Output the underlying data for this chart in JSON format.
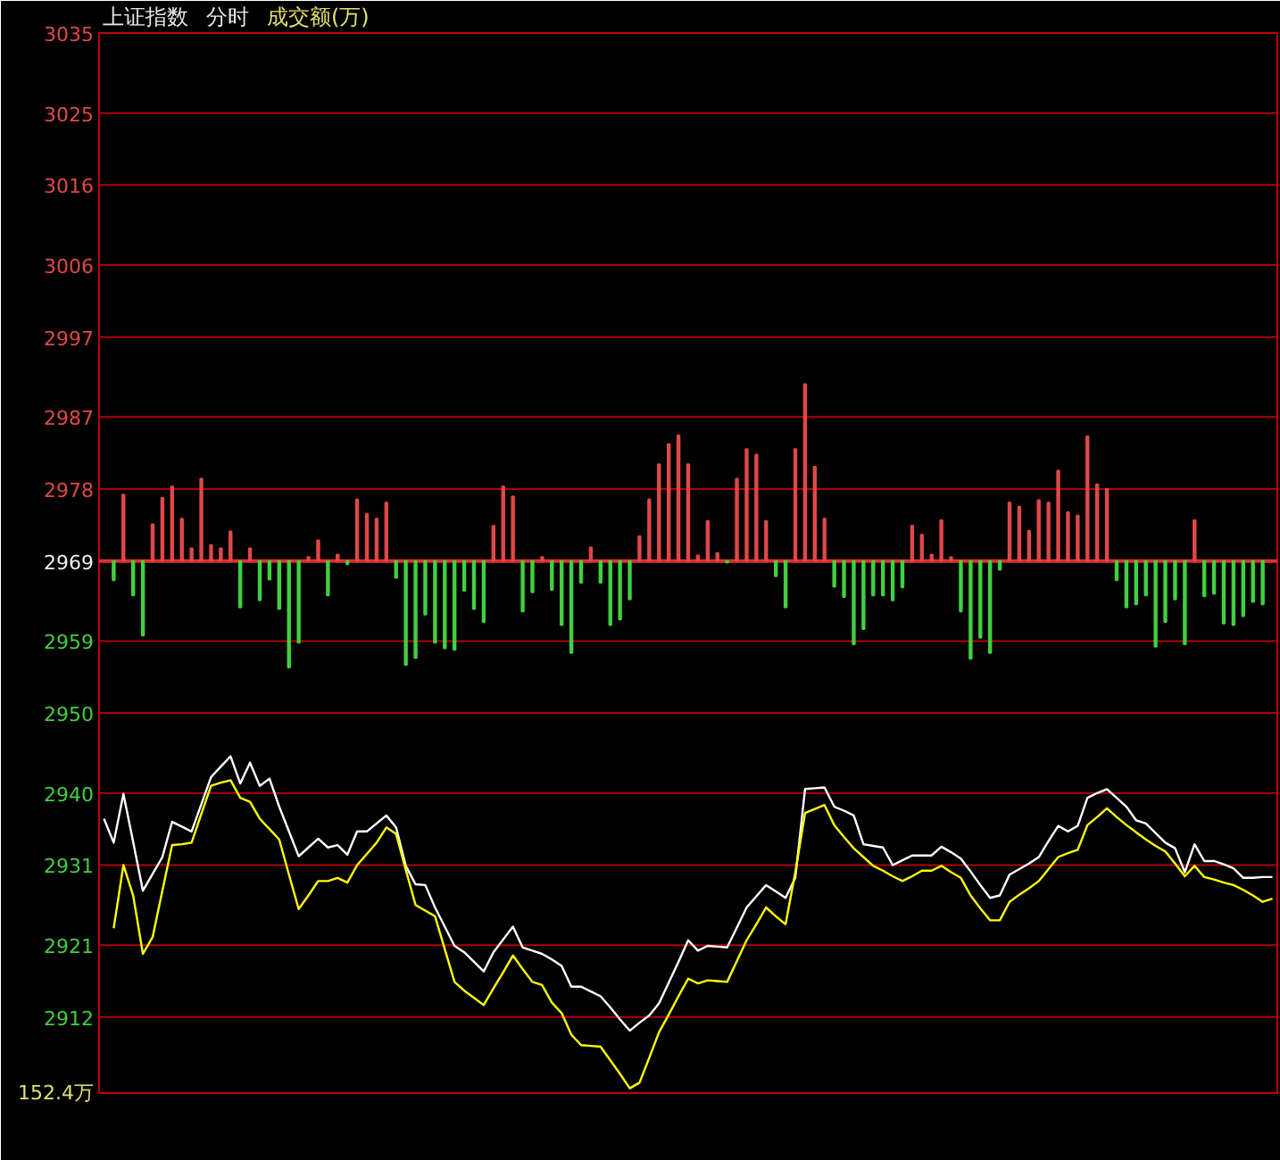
{
  "chart_data": {
    "type": "line",
    "title": "上证指数",
    "subtitle": "分时",
    "annotations": [
      "成交额(万)",
      "152.4万"
    ],
    "categories": [
      null,
      null,
      null,
      null,
      null,
      null,
      null,
      null,
      null,
      null,
      null,
      null,
      null,
      null,
      null,
      null,
      null,
      null,
      null,
      null,
      null,
      null,
      null,
      null,
      null,
      null,
      null,
      null,
      null,
      null,
      null,
      null,
      null,
      null,
      null,
      null,
      null,
      null,
      null,
      null,
      null,
      null,
      null,
      null,
      null,
      null,
      null,
      null,
      null,
      null,
      null,
      null,
      null,
      null,
      null,
      null,
      null,
      null,
      null,
      null,
      null,
      null,
      null,
      null,
      null,
      null,
      null,
      null,
      null,
      null,
      null,
      null,
      null,
      null,
      null,
      null,
      null,
      null,
      null,
      null,
      null,
      null,
      null,
      null,
      null,
      null,
      null,
      null,
      null,
      null,
      null,
      null,
      null,
      null,
      null,
      null,
      null,
      null,
      null,
      null,
      null,
      null,
      null,
      null,
      null,
      null,
      null,
      null,
      null,
      null,
      null,
      null,
      null,
      null,
      null,
      null,
      null,
      null,
      null,
      null,
      null
    ],
    "ylim": [
      2902.5,
      3035
    ],
    "yticks": [
      3035,
      3025,
      3016,
      3006,
      2997,
      2987,
      2978,
      2969,
      2959,
      2950,
      2940,
      2931,
      2921,
      2912
    ],
    "tick_labels": "y",
    "grid": "y",
    "ref_lines": [
      {
        "axis": "y",
        "value": 2969,
        "color": "#e03030"
      }
    ],
    "series": [
      {
        "type": "bar",
        "base": [
          null,
          2969,
          2969,
          2969,
          2969,
          2969,
          2969,
          2969,
          2969,
          2969,
          2969,
          2969,
          2969,
          2969,
          2969,
          2969,
          2969,
          2969,
          2969,
          2969,
          2969,
          2969,
          2969,
          2969,
          2969,
          2969,
          2969,
          2969,
          2969,
          2969,
          2969,
          2969,
          2969,
          2969,
          2969,
          2969,
          2969,
          2969,
          2969,
          2969,
          2969,
          2969,
          2969,
          2969,
          2969,
          2969,
          2969,
          2969,
          2969,
          2969,
          2969,
          2969,
          2969,
          2969,
          2969,
          2969,
          2969,
          2969,
          2969,
          2969,
          2969,
          2969,
          2969,
          2969,
          2969,
          2969,
          2969,
          2969,
          2969,
          2969,
          2969,
          2969,
          2969,
          2969,
          2969,
          2969,
          2969,
          2969,
          2969,
          2969,
          2969,
          2969,
          2969,
          2969,
          2969,
          2969,
          2969,
          2969,
          2969,
          2969,
          2969,
          2969,
          2969,
          2969,
          2969,
          2969,
          2969,
          2969,
          2969,
          2969,
          2969,
          2969,
          2969,
          2969,
          2969,
          2969,
          2969,
          2969,
          2969,
          2969,
          2969,
          2969,
          2969,
          2969,
          2969,
          2969,
          2969,
          2969,
          2969,
          2969,
          null
        ],
        "values": [
          null,
          -2.4,
          8.3,
          -4.3,
          -9.3,
          4.6,
          7.9,
          9.3,
          5.3,
          1.6,
          10.3,
          2.0,
          1.6,
          3.7,
          -5.8,
          1.6,
          -4.9,
          -2.3,
          -6.0,
          -13.3,
          -10.2,
          0.5,
          2.6,
          -4.3,
          0.8,
          -0.4,
          7.7,
          5.9,
          5.3,
          7.3,
          -2.1,
          -13.0,
          -12.1,
          -6.7,
          -10.2,
          -10.9,
          -11.1,
          -3.7,
          -6.0,
          -7.6,
          4.4,
          9.3,
          8.1,
          -6.3,
          -3.9,
          0.5,
          -3.6,
          -8.0,
          -11.5,
          -2.7,
          1.7,
          -2.7,
          -8.0,
          -7.3,
          -4.8,
          3.1,
          7.7,
          12.1,
          14.6,
          15.7,
          12.1,
          0.7,
          5.0,
          1.0,
          -0.2,
          10.3,
          14.0,
          13.3,
          5.0,
          -1.9,
          -5.8,
          14.0,
          22.1,
          11.8,
          5.3,
          -3.2,
          -4.5,
          -10.4,
          -8.5,
          -4.3,
          -4.3,
          -4.9,
          -3.3,
          4.4,
          3.3,
          0.8,
          5.1,
          0.5,
          -6.3,
          -12.2,
          -9.6,
          -11.5,
          -1.1,
          7.3,
          6.8,
          3.8,
          7.6,
          7.3,
          11.3,
          6.1,
          5.7,
          15.6,
          9.6,
          9.0,
          -2.4,
          -5.8,
          -5.4,
          -4.3,
          -10.7,
          -7.6,
          -4.8,
          -10.4,
          5.1,
          -4.4,
          -4.1,
          -7.8,
          -8.0,
          -6.9,
          -5.1,
          -5.4,
          null
        ],
        "colors": [
          "#e04848",
          "#40d040",
          "#e04848",
          "#40d040",
          "#40d040",
          "#e04848",
          "#e04848",
          "#e04848",
          "#e04848",
          "#e04848",
          "#e04848",
          "#e04848",
          "#e04848",
          "#e04848",
          "#40d040",
          "#e04848",
          "#40d040",
          "#40d040",
          "#40d040",
          "#40d040",
          "#40d040",
          "#e04848",
          "#e04848",
          "#40d040",
          "#e04848",
          "#40d040",
          "#e04848",
          "#e04848",
          "#e04848",
          "#e04848",
          "#40d040",
          "#40d040",
          "#40d040",
          "#40d040",
          "#40d040",
          "#40d040",
          "#40d040",
          "#40d040",
          "#40d040",
          "#40d040",
          "#e04848",
          "#e04848",
          "#e04848",
          "#40d040",
          "#40d040",
          "#e04848",
          "#40d040",
          "#40d040",
          "#40d040",
          "#40d040",
          "#e04848",
          "#40d040",
          "#40d040",
          "#40d040",
          "#40d040",
          "#e04848",
          "#e04848",
          "#e04848",
          "#e04848",
          "#e04848",
          "#e04848",
          "#e04848",
          "#e04848",
          "#e04848",
          "#40d040",
          "#e04848",
          "#e04848",
          "#e04848",
          "#e04848",
          "#40d040",
          "#40d040",
          "#e04848",
          "#e04848",
          "#e04848",
          "#e04848",
          "#40d040",
          "#40d040",
          "#40d040",
          "#40d040",
          "#40d040",
          "#40d040",
          "#40d040",
          "#40d040",
          "#e04848",
          "#e04848",
          "#e04848",
          "#e04848",
          "#e04848",
          "#40d040",
          "#40d040",
          "#40d040",
          "#40d040",
          "#40d040",
          "#e04848",
          "#e04848",
          "#e04848",
          "#e04848",
          "#e04848",
          "#e04848",
          "#e04848",
          "#e04848",
          "#e04848",
          "#e04848",
          "#e04848",
          "#40d040",
          "#40d040",
          "#40d040",
          "#40d040",
          "#40d040",
          "#40d040",
          "#40d040",
          "#40d040",
          "#e04848",
          "#40d040",
          "#40d040",
          "#40d040",
          "#40d040",
          "#40d040",
          "#40d040",
          "#40d040",
          "#e04848"
        ]
      },
      {
        "color": "#ffffff",
        "values": [
          2936.8,
          2933.8,
          2939.9,
          2933.9,
          2927.8,
          2929.9,
          2932.0,
          2936.4,
          2935.8,
          2935.2,
          2938.6,
          2942.0,
          2943.3,
          2944.6,
          2941.2,
          2943.8,
          2940.9,
          2941.8,
          2938.3,
          2935.2,
          2932.1,
          2933.2,
          2934.3,
          2933.2,
          2933.5,
          2932.3,
          2935.2,
          2935.2,
          2936.2,
          2937.2,
          2935.7,
          2930.9,
          2928.6,
          2928.5,
          2925.7,
          2923.3,
          2920.9,
          2920.1,
          2918.9,
          2917.7,
          2920.1,
          2921.7,
          2923.3,
          2920.7,
          2920.3,
          2919.9,
          2919.2,
          2918.4,
          2915.8,
          2915.8,
          2915.2,
          2914.6,
          2913.2,
          2911.7,
          2910.3,
          2911.3,
          2912.2,
          2913.7,
          2916.3,
          2918.9,
          2921.6,
          2920.3,
          2920.9,
          2920.8,
          2920.7,
          2923.2,
          2925.7,
          2927.1,
          2928.5,
          2927.7,
          2926.9,
          2929.4,
          2940.5,
          2940.6,
          2940.7,
          2938.3,
          2937.8,
          2937.2,
          2933.6,
          2933.4,
          2933.2,
          2931.0,
          2931.6,
          2932.2,
          2932.2,
          2932.2,
          2933.3,
          2932.6,
          2931.8,
          2930.2,
          2928.5,
          2926.9,
          2927.2,
          2929.8,
          2930.5,
          2931.2,
          2932.0,
          2934.0,
          2935.9,
          2935.2,
          2935.9,
          2939.4,
          2940.0,
          2940.5,
          2939.4,
          2938.3,
          2936.6,
          2936.2,
          2935.0,
          2933.8,
          2933.1,
          2930.1,
          2933.6,
          2931.5,
          2931.5,
          2931.1,
          2930.6,
          2929.4,
          2929.4,
          2929.5,
          2929.5
        ]
      },
      {
        "color": "#ffff00",
        "values": [
          null,
          2923.1,
          2931.0,
          2927.2,
          2919.9,
          2922.0,
          2927.8,
          2933.5,
          2933.6,
          2933.8,
          2937.4,
          2940.9,
          2941.3,
          2941.6,
          2939.4,
          2938.9,
          2936.8,
          2935.5,
          2934.2,
          2929.8,
          2925.5,
          2927.2,
          2929.0,
          2929.0,
          2929.4,
          2928.8,
          2931.0,
          2932.4,
          2933.8,
          2935.7,
          2934.9,
          2930.4,
          2926.0,
          2925.3,
          2924.6,
          2920.5,
          2916.4,
          2915.3,
          2914.4,
          2913.5,
          2915.6,
          2917.6,
          2919.7,
          2918.0,
          2916.4,
          2916.0,
          2913.8,
          2912.5,
          2909.8,
          2908.5,
          2908.4,
          2908.3,
          2906.6,
          2904.9,
          2903.1,
          2903.8,
          2906.9,
          2910.1,
          2912.3,
          2914.6,
          2916.8,
          2916.2,
          2916.6,
          2916.5,
          2916.4,
          2919.0,
          2921.6,
          2923.6,
          2925.7,
          2924.6,
          2923.6,
          2930.1,
          2937.5,
          2938.0,
          2938.5,
          2936.0,
          2934.5,
          2933.1,
          2932.0,
          2930.9,
          2930.3,
          2929.6,
          2929.0,
          2929.6,
          2930.3,
          2930.3,
          2930.9,
          2930.1,
          2929.4,
          2927.2,
          2925.6,
          2924.1,
          2924.1,
          2926.4,
          2927.3,
          2928.1,
          2929.0,
          2930.5,
          2932.0,
          2932.5,
          2932.9,
          2936.0,
          2937.0,
          2938.1,
          2937.0,
          2936.0,
          2935.1,
          2934.2,
          2933.4,
          2932.7,
          2931.2,
          2929.6,
          2930.9,
          2929.5,
          2929.2,
          2928.8,
          2928.5,
          2927.9,
          2927.2,
          2926.4,
          2926.8
        ]
      }
    ]
  }
}
